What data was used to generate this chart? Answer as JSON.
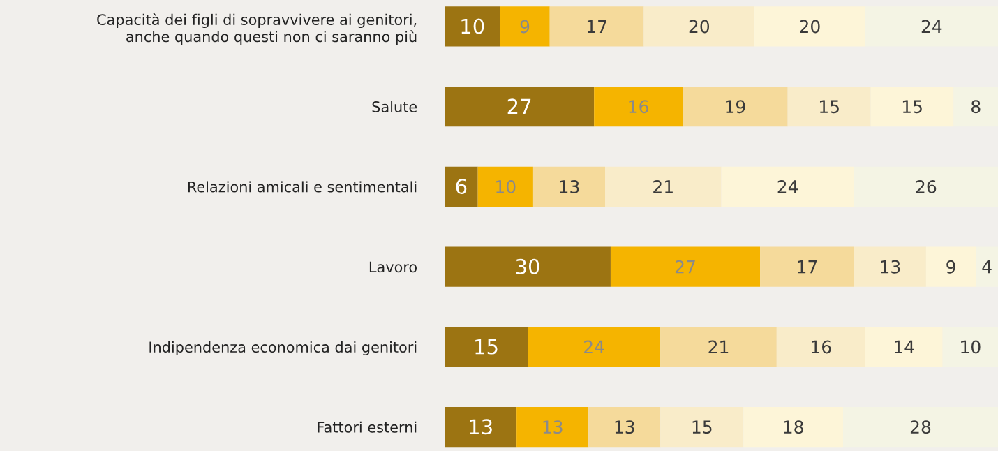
{
  "chart_data": {
    "type": "bar",
    "orientation": "horizontal",
    "stacked": true,
    "data_labels": true,
    "categories": [
      "Capacità dei figli di sopravvivere ai genitori,\nanche quando questi non ci saranno più",
      "Salute",
      "Relazioni amicali e sentimentali",
      "Lavoro",
      "Indipendenza economica dai genitori",
      "Fattori esterni"
    ],
    "series": [
      {
        "color": "#9c7412",
        "values": [
          10,
          27,
          6,
          30,
          15,
          13
        ]
      },
      {
        "color": "#f5b400",
        "values": [
          9,
          16,
          10,
          27,
          24,
          13
        ]
      },
      {
        "color": "#f5da9b",
        "values": [
          17,
          19,
          13,
          17,
          21,
          13
        ]
      },
      {
        "color": "#f9ecc9",
        "values": [
          20,
          15,
          21,
          13,
          16,
          15
        ]
      },
      {
        "color": "#fdf5d8",
        "values": [
          20,
          15,
          24,
          9,
          14,
          18
        ]
      },
      {
        "color": "#f4f4e4",
        "values": [
          24,
          8,
          26,
          4,
          10,
          28
        ]
      }
    ]
  }
}
